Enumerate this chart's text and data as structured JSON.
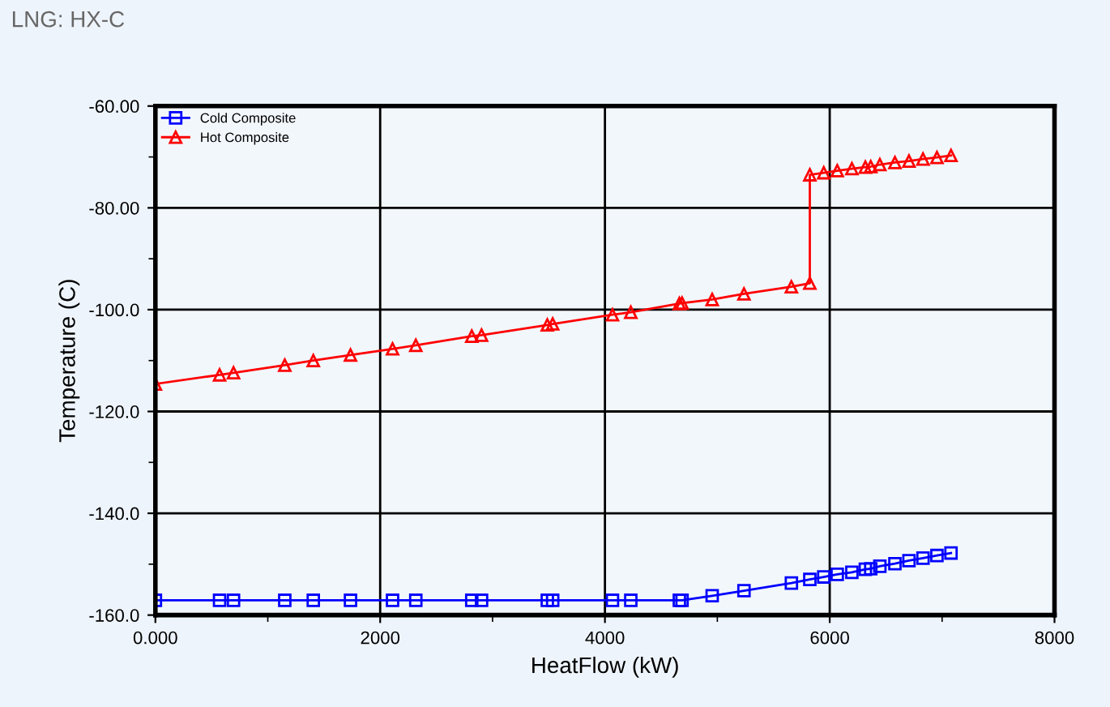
{
  "chart_data": {
    "type": "line",
    "title": "LNG: HX-C",
    "xlabel": "HeatFlow (kW)",
    "ylabel": "Temperature (C)",
    "xlim": [
      0,
      8000
    ],
    "ylim": [
      -160,
      -60
    ],
    "xticks": [
      {
        "value": 0,
        "label": "0.000"
      },
      2000,
      4000,
      6000,
      8000
    ],
    "yticks": [
      {
        "value": -160,
        "label": "-160.0"
      },
      {
        "value": -140,
        "label": "-140.0"
      },
      {
        "value": -120,
        "label": "-120.0"
      },
      {
        "value": -100,
        "label": "-100.0"
      },
      {
        "value": -80,
        "label": "-80.00"
      },
      {
        "value": -60,
        "label": "-60.00"
      }
    ],
    "grid": true,
    "legend": "top left",
    "series": [
      {
        "name": "Cold Composite",
        "color": "#0000ff",
        "marker": "square",
        "x": [
          0,
          571,
          695,
          1151,
          1405,
          1736,
          2110,
          2317,
          2815,
          2902,
          3487,
          3535,
          4067,
          4230,
          4662,
          4686,
          4954,
          5237,
          5659,
          5823,
          5947,
          6067,
          6197,
          6317,
          6365,
          6446,
          6580,
          6705,
          6830,
          6954,
          7079
        ],
        "values": [
          -157.1,
          -157.1,
          -157.1,
          -157.1,
          -157.1,
          -157.1,
          -157.1,
          -157.1,
          -157.1,
          -157.1,
          -157.1,
          -157.1,
          -157.1,
          -157.1,
          -157.1,
          -157.1,
          -156.2,
          -155.2,
          -153.7,
          -153.0,
          -152.5,
          -152.0,
          -151.6,
          -151.0,
          -150.9,
          -150.4,
          -149.9,
          -149.3,
          -148.8,
          -148.3,
          -147.8
        ]
      },
      {
        "name": "Hot Composite",
        "color": "#ff0000",
        "marker": "triangle",
        "x": [
          0,
          571,
          695,
          1151,
          1405,
          1736,
          2110,
          2317,
          2815,
          2902,
          3487,
          3535,
          4067,
          4230,
          4662,
          4686,
          4954,
          5237,
          5659,
          5823,
          5823,
          5947,
          6067,
          6197,
          6317,
          6365,
          6446,
          6580,
          6705,
          6830,
          6954,
          7079
        ],
        "values": [
          -114.6,
          -112.8,
          -112.4,
          -110.9,
          -110.0,
          -108.9,
          -107.7,
          -107.0,
          -105.2,
          -105.0,
          -103.0,
          -102.8,
          -101.0,
          -100.5,
          -98.8,
          -98.7,
          -98.0,
          -96.9,
          -95.5,
          -94.8,
          -73.5,
          -73.1,
          -72.7,
          -72.3,
          -72.0,
          -71.9,
          -71.5,
          -71.1,
          -70.8,
          -70.4,
          -70.1,
          -69.7
        ]
      }
    ]
  }
}
